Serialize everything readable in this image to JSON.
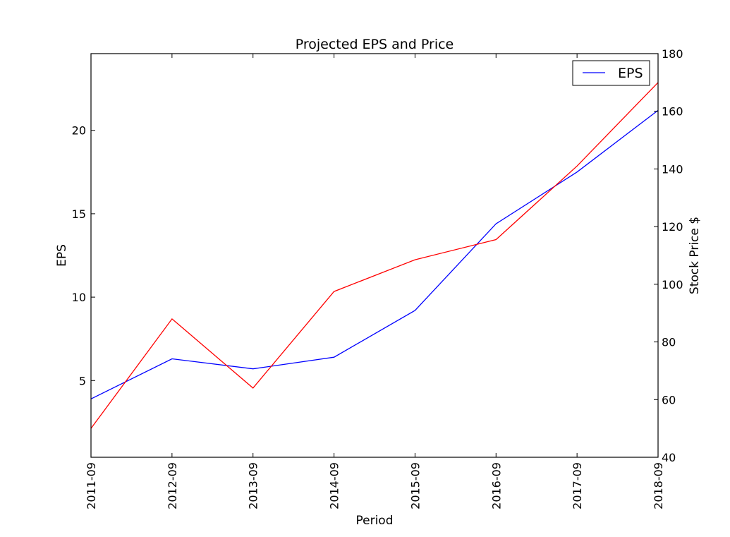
{
  "chart_data": {
    "type": "line",
    "title": "Projected EPS and Price",
    "xlabel": "Period",
    "ylabel_left": "EPS",
    "ylabel_right": "Stock Price $",
    "categories": [
      "2011-09",
      "2012-09",
      "2013-09",
      "2014-09",
      "2015-09",
      "2016-09",
      "2017-09",
      "2018-09"
    ],
    "ylim_left": [
      0.4,
      24.6
    ],
    "yticks_left": [
      5,
      10,
      15,
      20
    ],
    "ylim_right": [
      40,
      180
    ],
    "yticks_right": [
      40,
      60,
      80,
      100,
      120,
      140,
      160,
      180
    ],
    "grid": false,
    "legend_position": "top-right",
    "legend": [
      "EPS"
    ],
    "series": [
      {
        "name": "EPS",
        "axis": "left",
        "color": "#0000ff",
        "values": [
          3.9,
          6.3,
          5.7,
          6.4,
          9.2,
          14.4,
          17.5,
          21.2
        ]
      },
      {
        "axis": "right",
        "color": "#ff0000",
        "values": [
          50,
          88,
          64,
          97.5,
          108.5,
          115.5,
          141,
          170
        ]
      }
    ]
  }
}
